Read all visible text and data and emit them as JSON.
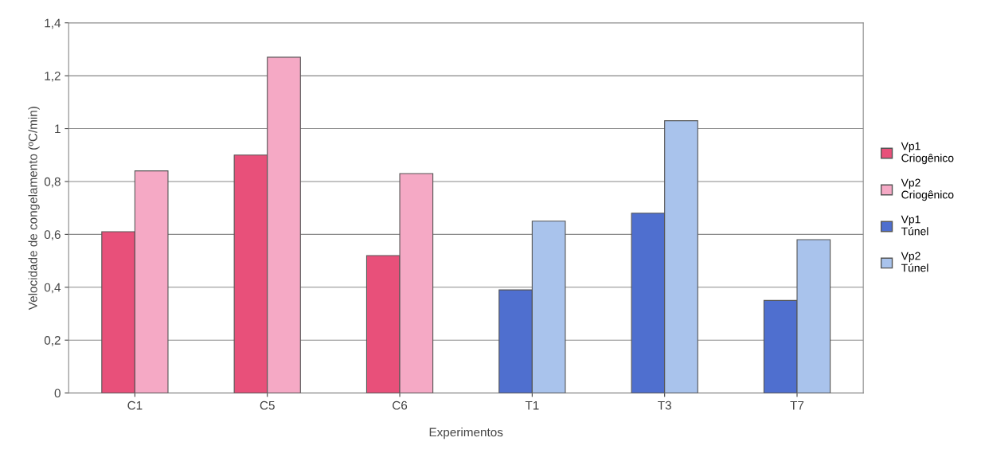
{
  "chart_data": {
    "type": "bar",
    "xlabel": "Experimentos",
    "ylabel": "Velocidade de congelamento (ºC/min)",
    "categories": [
      "C1",
      "C5",
      "C6",
      "T1",
      "T3",
      "T7"
    ],
    "series": [
      {
        "name": "Vp1\nCriogênico",
        "color": "#e8507a",
        "values": [
          0.61,
          0.9,
          0.52,
          null,
          null,
          null
        ]
      },
      {
        "name": "Vp2\nCriogênico",
        "color": "#f5a9c5",
        "values": [
          0.84,
          1.27,
          0.83,
          null,
          null,
          null
        ]
      },
      {
        "name": "Vp1\nTúnel",
        "color": "#4f6fcf",
        "values": [
          null,
          null,
          null,
          0.39,
          0.68,
          0.35
        ]
      },
      {
        "name": "Vp2\nTúnel",
        "color": "#a9c3ec",
        "values": [
          null,
          null,
          null,
          0.65,
          1.03,
          0.58
        ]
      }
    ],
    "ylim": [
      0,
      1.4
    ],
    "yticks": [
      0,
      {
        "value": 0.2,
        "label": "0,2"
      },
      {
        "value": 0.4,
        "label": "0,4"
      },
      {
        "value": 0.6,
        "label": "0,6"
      },
      {
        "value": 0.8,
        "label": "0,8"
      },
      1,
      {
        "value": 1.2,
        "label": "1,2"
      },
      {
        "value": 1.4,
        "label": "1,4"
      }
    ],
    "grid": "y",
    "legend": "right"
  }
}
